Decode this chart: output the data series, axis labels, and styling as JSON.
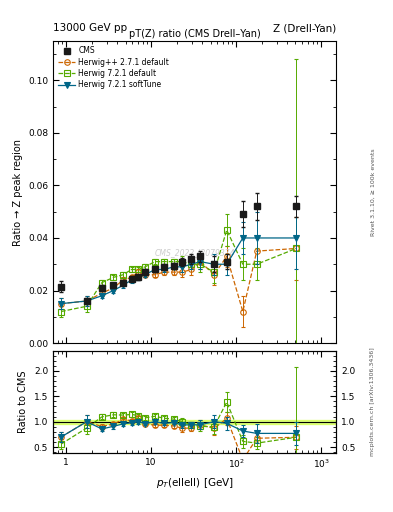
{
  "title_top_left": "13000 GeV pp",
  "title_top_right": "Z (Drell-Yan)",
  "main_title": "pT(Z) ratio (CMS Drell–Yan)",
  "ylabel_main": "Ratio → Z peak region",
  "ylabel_ratio": "Ratio to CMS",
  "xlabel": "p_{T}(ellell) [GeV]",
  "watermark": "CMS_2022_I2079374",
  "right_label_top": "Rivet 3.1.10, ≥ 100k events",
  "right_label_bot": "mcplots.cern.ch [arXiv:1306.3436]",
  "xlim": [
    0.7,
    1500
  ],
  "ylim_main": [
    0.0,
    0.115
  ],
  "ylim_ratio": [
    0.38,
    2.4
  ],
  "cms_x": [
    0.87,
    1.74,
    2.63,
    3.6,
    4.67,
    5.88,
    7.08,
    8.48,
    11.07,
    14.12,
    18.41,
    23.35,
    29.72,
    37.78,
    55.0,
    77.6,
    120.0,
    175.0,
    510.0
  ],
  "cms_y": [
    0.0215,
    0.016,
    0.021,
    0.022,
    0.023,
    0.0245,
    0.025,
    0.027,
    0.028,
    0.029,
    0.0295,
    0.031,
    0.032,
    0.033,
    0.03,
    0.031,
    0.049,
    0.052,
    0.052
  ],
  "cms_yerr": [
    0.002,
    0.001,
    0.001,
    0.001,
    0.001,
    0.001,
    0.001,
    0.001,
    0.001,
    0.001,
    0.001,
    0.0015,
    0.002,
    0.002,
    0.003,
    0.003,
    0.005,
    0.005,
    0.004
  ],
  "h1_x": [
    0.87,
    1.74,
    2.63,
    3.6,
    4.67,
    5.88,
    7.08,
    8.48,
    11.07,
    14.12,
    18.41,
    23.35,
    29.72,
    37.78,
    55.0,
    77.6,
    120.0,
    175.0,
    510.0
  ],
  "h1_y": [
    0.015,
    0.016,
    0.019,
    0.021,
    0.024,
    0.025,
    0.027,
    0.026,
    0.026,
    0.027,
    0.027,
    0.027,
    0.028,
    0.031,
    0.026,
    0.033,
    0.012,
    0.035,
    0.036
  ],
  "h1_yerr": [
    0.002,
    0.002,
    0.001,
    0.001,
    0.001,
    0.001,
    0.001,
    0.001,
    0.001,
    0.001,
    0.001,
    0.002,
    0.002,
    0.003,
    0.004,
    0.004,
    0.006,
    0.005,
    0.012
  ],
  "h2_x": [
    0.87,
    1.74,
    2.63,
    3.6,
    4.67,
    5.88,
    7.08,
    8.48,
    11.07,
    14.12,
    18.41,
    23.35,
    29.72,
    37.78,
    55.0,
    77.6,
    120.0,
    175.0,
    510.0
  ],
  "h2_y": [
    0.012,
    0.014,
    0.023,
    0.025,
    0.026,
    0.028,
    0.028,
    0.029,
    0.031,
    0.031,
    0.031,
    0.031,
    0.03,
    0.03,
    0.027,
    0.043,
    0.03,
    0.03,
    0.036
  ],
  "h2_yerr": [
    0.002,
    0.002,
    0.001,
    0.001,
    0.001,
    0.001,
    0.001,
    0.001,
    0.001,
    0.001,
    0.001,
    0.002,
    0.002,
    0.003,
    0.004,
    0.006,
    0.006,
    0.006,
    0.072
  ],
  "h3_x": [
    0.87,
    1.74,
    2.63,
    3.6,
    4.67,
    5.88,
    7.08,
    8.48,
    11.07,
    14.12,
    18.41,
    23.35,
    29.72,
    37.78,
    55.0,
    77.6,
    120.0,
    175.0,
    510.0
  ],
  "h3_y": [
    0.015,
    0.016,
    0.018,
    0.02,
    0.022,
    0.024,
    0.025,
    0.026,
    0.028,
    0.028,
    0.029,
    0.029,
    0.03,
    0.031,
    0.03,
    0.03,
    0.04,
    0.04,
    0.04
  ],
  "h3_yerr": [
    0.002,
    0.002,
    0.001,
    0.001,
    0.001,
    0.001,
    0.001,
    0.001,
    0.001,
    0.001,
    0.001,
    0.002,
    0.002,
    0.003,
    0.004,
    0.004,
    0.006,
    0.01,
    0.012
  ],
  "color_cms": "#1a1a1a",
  "color_h1": "#cc6600",
  "color_h2": "#55aa00",
  "color_h3": "#006688",
  "color_band": "#ccff33",
  "color_line": "#000000"
}
